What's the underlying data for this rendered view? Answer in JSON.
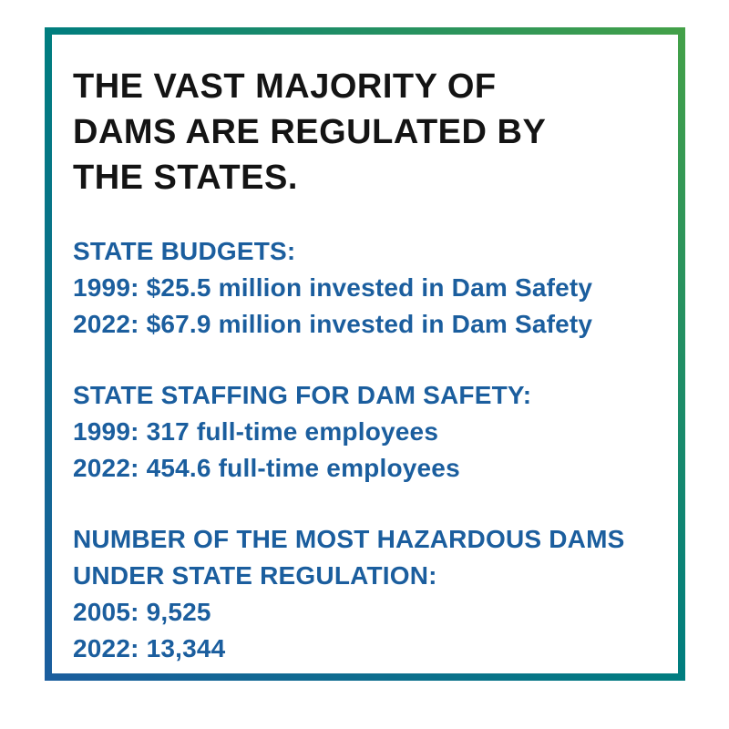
{
  "card": {
    "title": "THE VAST MAJORITY OF DAMS ARE REGULATED BY THE STATES.",
    "sections": [
      {
        "heading": "STATE BUDGETS:",
        "lines": [
          "1999: $25.5 million invested in Dam Safety",
          "2022: $67.9 million invested in Dam Safety"
        ]
      },
      {
        "heading": "STATE STAFFING FOR DAM SAFETY:",
        "lines": [
          "1999: 317 full-time employees",
          "2022: 454.6 full-time employees"
        ]
      },
      {
        "heading": "NUMBER OF THE MOST HAZARDOUS DAMS UNDER STATE REGULATION:",
        "lines": [
          "2005: 9,525",
          "2022: 13,344"
        ]
      }
    ],
    "colors": {
      "accent": "#1b5e9e",
      "heading": "#141414",
      "grad_start": "#44a148",
      "grad_mid": "#007d7f",
      "grad_end": "#1b5d9e"
    }
  }
}
